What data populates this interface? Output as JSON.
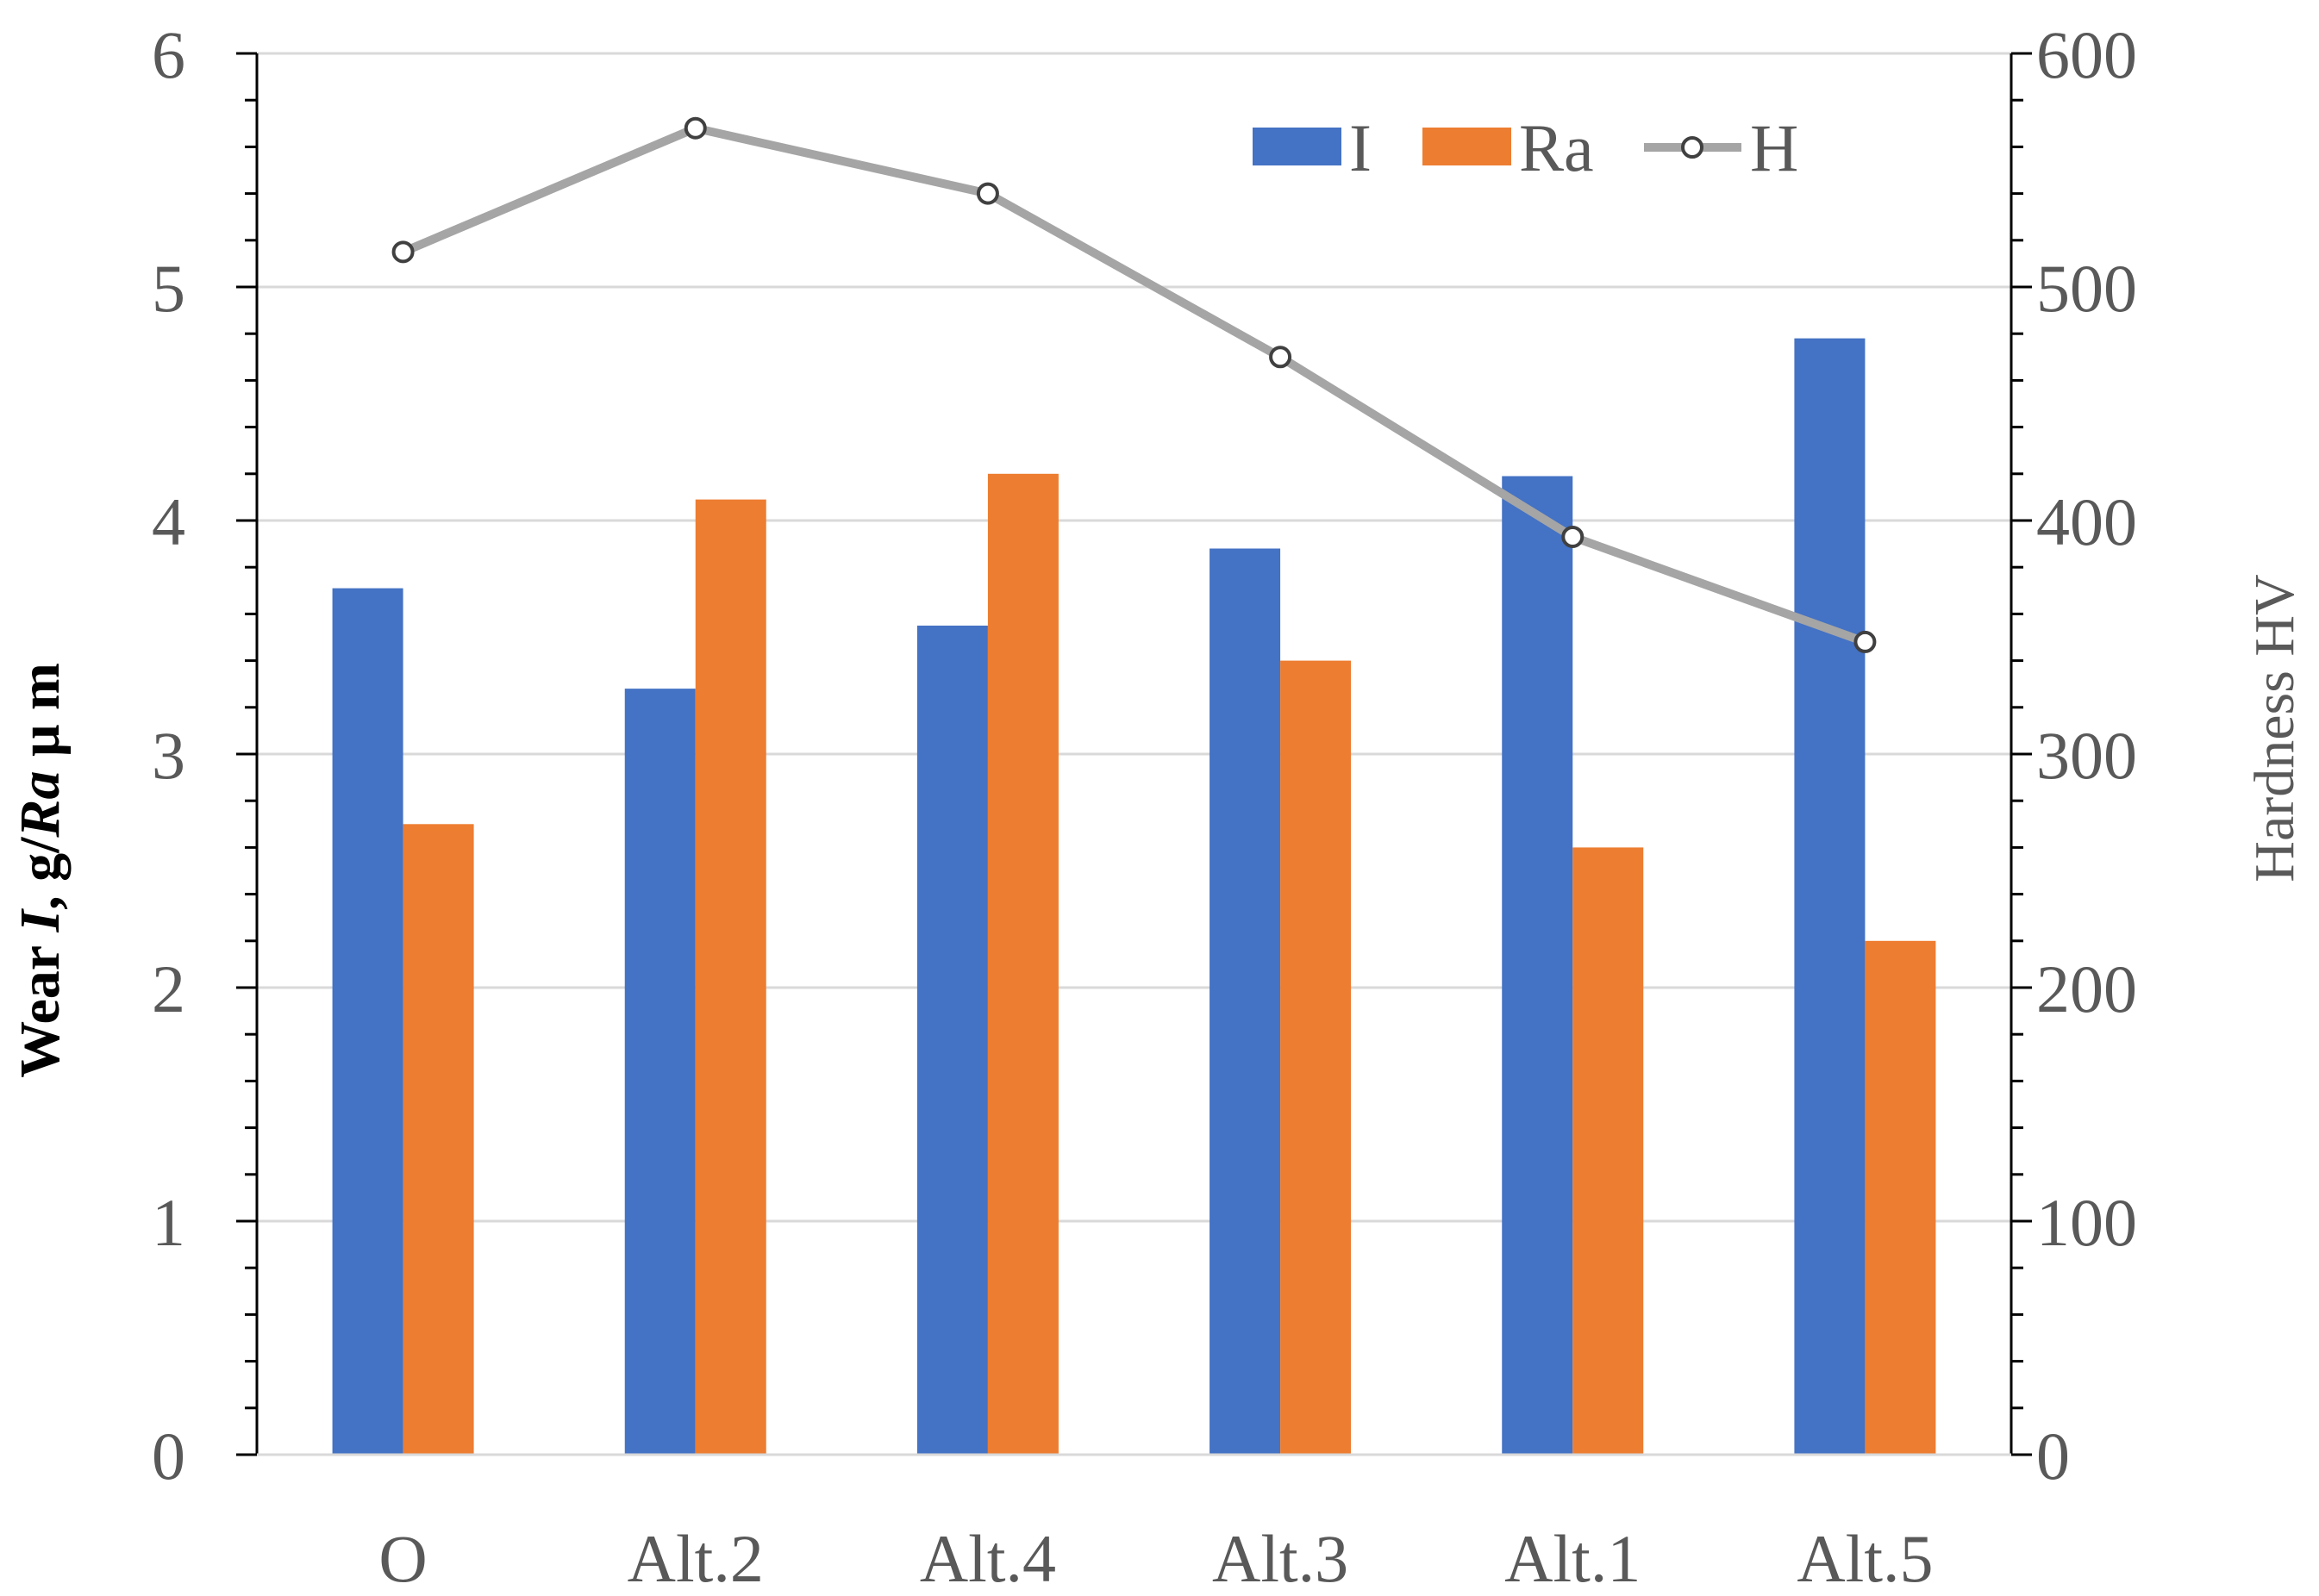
{
  "chart_data": {
    "type": "bar",
    "title": "",
    "categories": [
      "O",
      "Alt.2",
      "Alt.4",
      "Alt.3",
      "Alt.1",
      "Alt.5"
    ],
    "series": [
      {
        "name": "I",
        "kind": "bar",
        "axis": "left",
        "color": "#4472C4",
        "values": [
          3.71,
          3.28,
          3.55,
          3.88,
          4.19,
          4.78
        ]
      },
      {
        "name": "Ra",
        "kind": "bar",
        "axis": "left",
        "color": "#ED7D31",
        "values": [
          2.7,
          4.09,
          4.2,
          3.4,
          2.6,
          2.2
        ]
      },
      {
        "name": "H",
        "kind": "line",
        "axis": "right",
        "color": "#A5A5A5",
        "marker": "open-circle",
        "values": [
          515,
          568,
          540,
          470,
          393,
          348
        ]
      }
    ],
    "y_left": {
      "label_prefix": "Wear ",
      "label_italic1": "I",
      "label_mid": ", g/",
      "label_italic2": "Ra",
      "label_suffix": " μ m",
      "min": 0,
      "max": 6,
      "major_step": 1,
      "minor_step": 0.2,
      "ticks": [
        "0",
        "1",
        "2",
        "3",
        "4",
        "5",
        "6"
      ]
    },
    "y_right": {
      "label": "Hardness HV",
      "min": 0,
      "max": 600,
      "major_step": 100,
      "minor_step": 20,
      "ticks": [
        "0",
        "100",
        "200",
        "300",
        "400",
        "500",
        "600"
      ]
    },
    "grid": true,
    "legend": {
      "position": "top-right",
      "entries": [
        "I",
        "Ra",
        "H"
      ]
    }
  }
}
